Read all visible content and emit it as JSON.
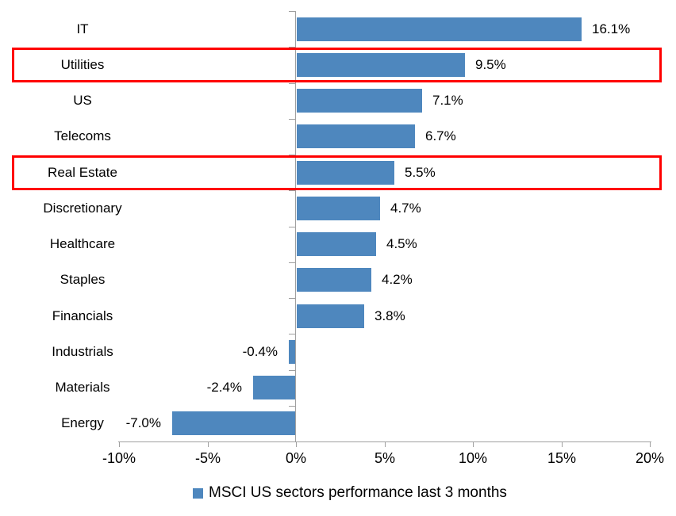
{
  "chart_data": {
    "type": "bar",
    "orientation": "horizontal",
    "title": "",
    "categories": [
      "IT",
      "Utilities",
      "US",
      "Telecoms",
      "Real Estate",
      "Discretionary",
      "Healthcare",
      "Staples",
      "Financials",
      "Industrials",
      "Materials",
      "Energy"
    ],
    "values": [
      16.1,
      9.5,
      7.1,
      6.7,
      5.5,
      4.7,
      4.5,
      4.2,
      3.8,
      -0.4,
      -2.4,
      -7.0
    ],
    "data_labels": [
      "16.1%",
      "9.5%",
      "7.1%",
      "6.7%",
      "5.5%",
      "4.7%",
      "4.5%",
      "4.2%",
      "3.8%",
      "-0.4%",
      "-2.4%",
      "-7.0%"
    ],
    "highlighted_categories": [
      "Utilities",
      "Real Estate"
    ],
    "x_axis": {
      "tick_labels": [
        "-10%",
        "-5%",
        "0%",
        "5%",
        "10%",
        "15%",
        "20%"
      ],
      "tick_values": [
        -10,
        -5,
        0,
        5,
        10,
        15,
        20
      ],
      "range": [
        -10,
        20
      ],
      "unit": "%"
    },
    "legend": {
      "label": "MSCI US sectors performance last 3 months",
      "position": "bottom"
    },
    "grid": false,
    "colors": {
      "bar": "#4E87BE",
      "highlight_box": "#FF0000",
      "axis": "#A0A0A0",
      "text": "#000000",
      "background": "#FFFFFF"
    }
  }
}
